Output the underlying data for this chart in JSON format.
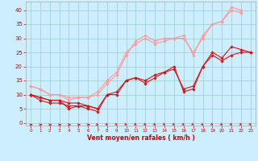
{
  "x": [
    0,
    1,
    2,
    3,
    4,
    5,
    6,
    7,
    8,
    9,
    10,
    11,
    12,
    13,
    14,
    15,
    16,
    17,
    18,
    19,
    20,
    21,
    22,
    23
  ],
  "series": [
    {
      "y": [
        10,
        9,
        8,
        8,
        5,
        6,
        6,
        5,
        null,
        null,
        null,
        null,
        null,
        null,
        null,
        null,
        null,
        null,
        null,
        null,
        null,
        null,
        null,
        null
      ],
      "color": "#dd1111",
      "lw": 0.8,
      "marker": "D",
      "ms": 1.8
    },
    {
      "y": [
        10,
        8,
        7,
        7,
        6,
        6,
        5,
        4,
        10,
        10,
        15,
        16,
        14,
        16,
        18,
        20,
        11,
        12,
        20,
        25,
        23,
        27,
        26,
        25
      ],
      "color": "#dd1111",
      "lw": 0.8,
      "marker": "D",
      "ms": 1.8
    },
    {
      "y": [
        10,
        9,
        8,
        8,
        7,
        7,
        6,
        5,
        10,
        11,
        15,
        16,
        15,
        17,
        18,
        19,
        12,
        13,
        20,
        24,
        22,
        24,
        25,
        25
      ],
      "color": "#dd1111",
      "lw": 0.8,
      "marker": "D",
      "ms": 1.8
    },
    {
      "y": [
        13,
        12,
        10,
        10,
        8,
        9,
        9,
        10,
        14,
        17,
        24,
        29,
        31,
        29,
        30,
        30,
        30,
        25,
        30,
        35,
        36,
        40,
        39,
        null
      ],
      "color": "#ff9999",
      "lw": 0.8,
      "marker": "D",
      "ms": 1.8
    },
    {
      "y": [
        13,
        12,
        10,
        10,
        9,
        9,
        9,
        11,
        15,
        18,
        25,
        28,
        30,
        28,
        29,
        30,
        31,
        24,
        31,
        35,
        36,
        41,
        40,
        null
      ],
      "color": "#ff9999",
      "lw": 0.8,
      "marker": "D",
      "ms": 1.8
    }
  ],
  "xlabel": "Vent moyen/en rafales ( km/h )",
  "ylabel_ticks": [
    0,
    5,
    10,
    15,
    20,
    25,
    30,
    35,
    40
  ],
  "xlim": [
    -0.5,
    23.5
  ],
  "ylim": [
    -1,
    43
  ],
  "bg_color": "#cceeff",
  "grid_color": "#99cccc",
  "axis_color": "#cc0000",
  "tick_color": "#cc0000",
  "label_color": "#cc0000"
}
